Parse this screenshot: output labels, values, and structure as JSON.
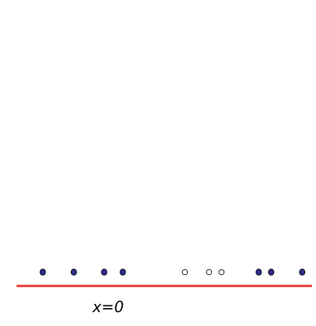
{
  "diagram": {
    "axis_label": "x=0",
    "line_color": "#e8261e",
    "filled_point_color": "#2f2f8f",
    "hollow_point_color": "#ffffff",
    "point_stroke_color": "#000000",
    "points": [
      {
        "kind": "filled"
      },
      {
        "kind": "filled"
      },
      {
        "kind": "filled"
      },
      {
        "kind": "filled"
      },
      {
        "kind": "hollow"
      },
      {
        "kind": "hollow"
      },
      {
        "kind": "hollow"
      },
      {
        "kind": "filled"
      },
      {
        "kind": "filled"
      },
      {
        "kind": "filled"
      }
    ]
  }
}
